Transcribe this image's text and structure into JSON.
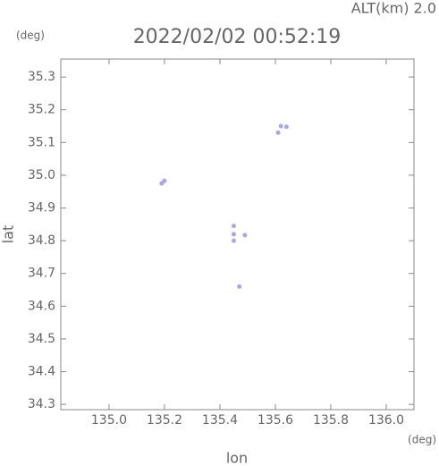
{
  "chart_data": {
    "type": "scatter",
    "title": "2022/02/02 00:52:19",
    "annotation": "ALT(km) 2.0",
    "y_unit": "(deg)",
    "x_unit": "(deg)",
    "xlabel": "lon",
    "ylabel": "lat",
    "x": [
      135.19,
      135.2,
      135.61,
      135.62,
      135.64,
      135.45,
      135.45,
      135.45,
      135.49,
      135.47
    ],
    "series": [
      {
        "color": "#6a6ae0",
        "values": [
          34.975,
          34.983,
          35.13,
          35.15,
          35.148,
          34.82,
          34.8,
          34.845,
          34.817,
          34.66
        ]
      }
    ],
    "xlim": [
      134.826,
      136.1
    ],
    "ylim": [
      34.284,
      35.355
    ],
    "xticks": [
      {
        "value": 135.0,
        "label": "135.0"
      },
      135.2,
      135.4,
      135.6,
      135.8,
      {
        "value": 136.0,
        "label": "136.0"
      }
    ],
    "yticks": [
      35.3,
      35.2,
      35.1,
      {
        "value": 35.0,
        "label": "35.0"
      },
      34.9,
      34.8,
      34.7,
      34.6,
      34.5,
      34.4,
      34.3
    ]
  }
}
